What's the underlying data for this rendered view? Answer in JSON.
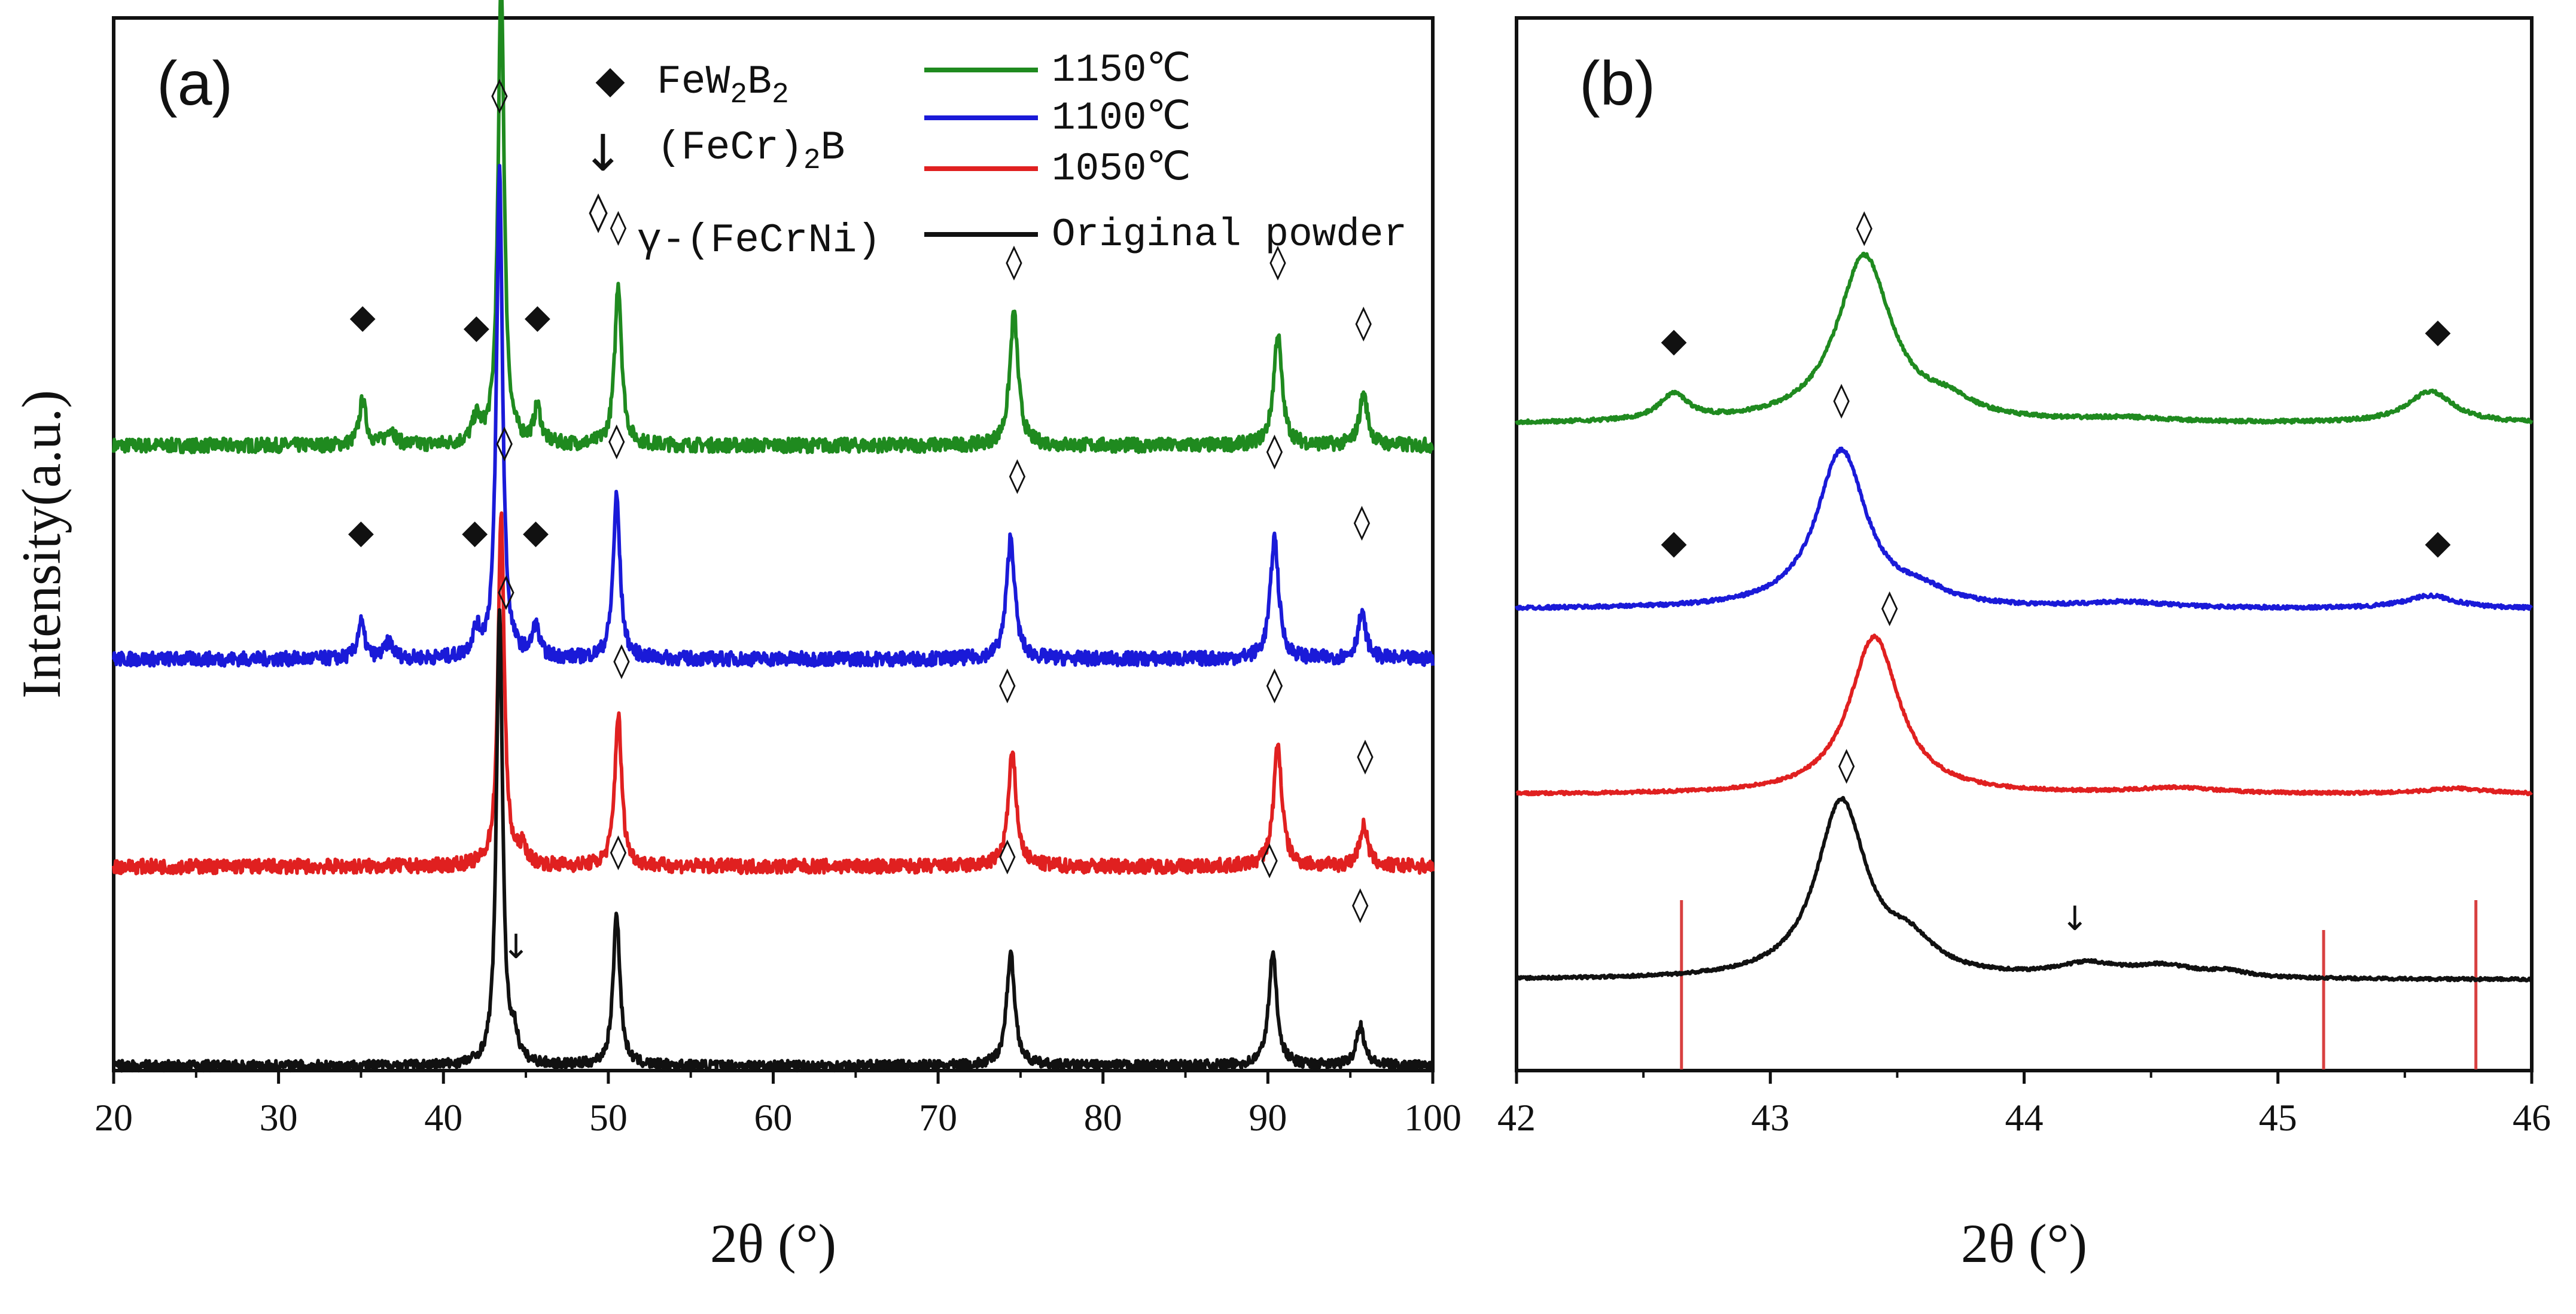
{
  "colors": {
    "s1150": "#1f8a1f",
    "s1100": "#1a1ad8",
    "s1050": "#e02020",
    "original": "#111111",
    "ref": "#d84040"
  },
  "chart_data": [
    {
      "id": "a",
      "panel_label": "(a)",
      "type": "line",
      "title": "",
      "xlabel": "2θ (°)",
      "ylabel": "Intensity(a.u.)",
      "xlim": [
        20,
        100
      ],
      "xticks": [
        "20",
        "30",
        "40",
        "50",
        "60",
        "70",
        "80",
        "90",
        "100"
      ],
      "series": [
        {
          "key": "s1150",
          "name": "1150℃",
          "baseline": 3.05,
          "noise": 0.035,
          "peaks": [
            [
              35.1,
              0.22,
              0.25
            ],
            [
              36.8,
              0.08,
              0.3
            ],
            [
              42.0,
              0.12,
              0.3
            ],
            [
              43.5,
              2.3,
              0.22
            ],
            [
              45.7,
              0.18,
              0.25
            ],
            [
              50.6,
              0.8,
              0.25
            ],
            [
              74.6,
              0.65,
              0.3
            ],
            [
              90.6,
              0.55,
              0.3
            ],
            [
              95.8,
              0.25,
              0.3
            ]
          ],
          "markers": [
            {
              "sym": "◆",
              "x": 35.1,
              "y": 3.63
            },
            {
              "sym": "◆",
              "x": 42.0,
              "y": 3.58
            },
            {
              "sym": "◆",
              "x": 45.7,
              "y": 3.63
            },
            {
              "sym": "◊",
              "x": 43.5,
              "y": 5.45
            },
            {
              "sym": "◊",
              "x": 50.6,
              "y": 4.07
            },
            {
              "sym": "◊",
              "x": 74.6,
              "y": 3.9
            },
            {
              "sym": "◊",
              "x": 90.6,
              "y": 3.9
            },
            {
              "sym": "◊",
              "x": 95.8,
              "y": 3.6
            }
          ]
        },
        {
          "key": "s1100",
          "name": "1100℃",
          "baseline": 2.0,
          "noise": 0.035,
          "peaks": [
            [
              35.0,
              0.18,
              0.25
            ],
            [
              36.7,
              0.08,
              0.3
            ],
            [
              42.0,
              0.12,
              0.3
            ],
            [
              43.4,
              2.4,
              0.22
            ],
            [
              45.6,
              0.15,
              0.25
            ],
            [
              50.5,
              0.8,
              0.25
            ],
            [
              74.4,
              0.6,
              0.3
            ],
            [
              90.4,
              0.6,
              0.3
            ],
            [
              95.7,
              0.22,
              0.3
            ]
          ],
          "markers": [
            {
              "sym": "◆",
              "x": 35.0,
              "y": 2.57
            },
            {
              "sym": "◆",
              "x": 41.9,
              "y": 2.57
            },
            {
              "sym": "◆",
              "x": 45.6,
              "y": 2.57
            },
            {
              "sym": "◊",
              "x": 43.4,
              "y": 4.72
            },
            {
              "sym": "◊",
              "x": 50.5,
              "y": 3.02
            },
            {
              "sym": "◊",
              "x": 74.8,
              "y": 2.85
            },
            {
              "sym": "◊",
              "x": 90.4,
              "y": 2.97
            },
            {
              "sym": "◊",
              "x": 95.7,
              "y": 2.62
            }
          ]
        },
        {
          "key": "s1050",
          "name": "1050℃",
          "baseline": 0.98,
          "noise": 0.035,
          "peaks": [
            [
              43.5,
              1.75,
              0.22
            ],
            [
              44.8,
              0.08,
              0.3
            ],
            [
              50.6,
              0.75,
              0.25
            ],
            [
              74.5,
              0.55,
              0.3
            ],
            [
              90.6,
              0.6,
              0.3
            ],
            [
              95.8,
              0.2,
              0.3
            ]
          ],
          "markers": [
            {
              "sym": "◊",
              "x": 43.7,
              "y": 3.01
            },
            {
              "sym": "◊",
              "x": 50.8,
              "y": 1.94
            },
            {
              "sym": "◊",
              "x": 74.2,
              "y": 1.82
            },
            {
              "sym": "◊",
              "x": 90.4,
              "y": 1.82
            },
            {
              "sym": "◊",
              "x": 95.9,
              "y": 1.47
            }
          ]
        },
        {
          "key": "original",
          "name": "Original powder",
          "baseline": 0.0,
          "noise": 0.025,
          "peaks": [
            [
              43.4,
              2.25,
              0.22
            ],
            [
              44.3,
              0.12,
              0.25
            ],
            [
              50.5,
              0.75,
              0.25
            ],
            [
              74.4,
              0.55,
              0.3
            ],
            [
              90.3,
              0.55,
              0.3
            ],
            [
              95.6,
              0.2,
              0.3
            ]
          ],
          "markers": [
            {
              "sym": "◊",
              "x": 43.8,
              "y": 2.28
            },
            {
              "sym": "↓",
              "x": 44.4,
              "y": 0.53
            },
            {
              "sym": "◊",
              "x": 50.6,
              "y": 1.0
            },
            {
              "sym": "◊",
              "x": 74.2,
              "y": 0.98
            },
            {
              "sym": "◊",
              "x": 90.1,
              "y": 0.96
            },
            {
              "sym": "◊",
              "x": 95.6,
              "y": 0.74
            }
          ]
        }
      ],
      "legend": {
        "phases": [
          {
            "sym": "◆",
            "main": "FeW",
            "sub1": "2",
            "mid": "B",
            "sub2": "2"
          },
          {
            "sym": "↓",
            "main": "(FeCr)",
            "sub1": "2",
            "mid": "B",
            "sub2": ""
          },
          {
            "sym": "◊",
            "main": "γ-(FeCrNi)",
            "sub1": "",
            "mid": "",
            "sub2": ""
          }
        ],
        "entries": [
          "1150℃",
          "1100℃",
          "1050℃",
          "Original powder"
        ]
      }
    },
    {
      "id": "b",
      "panel_label": "(b)",
      "type": "line",
      "title": "",
      "xlabel": "2θ (°)",
      "ylabel": "",
      "xlim": [
        42,
        46
      ],
      "xticks": [
        "42",
        "43",
        "44",
        "45",
        "46"
      ],
      "series": [
        {
          "key": "s1150",
          "name": "1150℃",
          "baseline": 3.45,
          "noise": 0.01,
          "peaks": [
            [
              42.62,
              0.14,
              0.07
            ],
            [
              43.37,
              0.9,
              0.13
            ],
            [
              43.7,
              0.08,
              0.12
            ],
            [
              44.4,
              0.02,
              0.2
            ],
            [
              45.6,
              0.17,
              0.11
            ]
          ],
          "markers": [
            {
              "sym": "◆",
              "x": 42.62,
              "y": 3.84
            },
            {
              "sym": "◊",
              "x": 43.37,
              "y": 4.45
            },
            {
              "sym": "◆",
              "x": 45.63,
              "y": 3.89
            }
          ]
        },
        {
          "key": "s1100",
          "name": "1100℃",
          "baseline": 2.45,
          "noise": 0.01,
          "peaks": [
            [
              43.28,
              0.85,
              0.12
            ],
            [
              43.6,
              0.06,
              0.12
            ],
            [
              44.4,
              0.03,
              0.2
            ],
            [
              45.6,
              0.07,
              0.12
            ]
          ],
          "markers": [
            {
              "sym": "◆",
              "x": 42.62,
              "y": 2.75
            },
            {
              "sym": "◊",
              "x": 43.28,
              "y": 3.52
            },
            {
              "sym": "◆",
              "x": 45.63,
              "y": 2.75
            }
          ]
        },
        {
          "key": "s1050",
          "name": "1050℃",
          "baseline": 1.45,
          "noise": 0.008,
          "peaks": [
            [
              43.41,
              0.85,
              0.12
            ],
            [
              44.6,
              0.03,
              0.2
            ],
            [
              45.7,
              0.03,
              0.15
            ]
          ],
          "markers": [
            {
              "sym": "◊",
              "x": 43.47,
              "y": 2.4
            }
          ]
        },
        {
          "key": "original",
          "name": "Original powder",
          "baseline": 0.45,
          "noise": 0.008,
          "peaks": [
            [
              43.28,
              0.95,
              0.12
            ],
            [
              43.55,
              0.15,
              0.12
            ],
            [
              44.25,
              0.07,
              0.15
            ],
            [
              44.55,
              0.06,
              0.15
            ],
            [
              44.8,
              0.03,
              0.1
            ]
          ],
          "markers": [
            {
              "sym": "◊",
              "x": 43.3,
              "y": 1.55
            },
            {
              "sym": "↓",
              "x": 44.2,
              "y": 0.72
            }
          ]
        }
      ],
      "reference_lines": [
        42.65,
        45.18,
        45.78
      ]
    }
  ]
}
